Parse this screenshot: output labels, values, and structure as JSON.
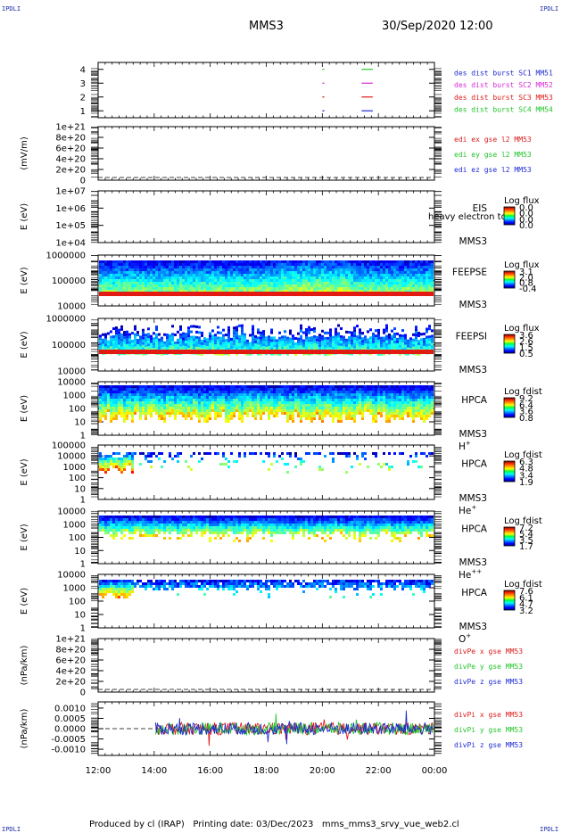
{
  "corner_label": "IPDLI",
  "header": {
    "spacecraft": "MMS3",
    "datetime": "30/Sep/2020 12:00"
  },
  "footer": {
    "produced_by": "Produced by cl (IRAP)",
    "printing_date": "Printing date: 03/Dec/2023",
    "filename": "mms_mms3_srvy_vue_web2.cl"
  },
  "colors": {
    "blue": "#1f2bd1",
    "magenta": "#d92bd6",
    "red": "#dd1b1b",
    "green": "#22c52a",
    "dark_blue": "#1a2ea8"
  },
  "chart_data": {
    "type": "multi-panel time series and spectrograms",
    "x": {
      "ticks": [
        "12:00",
        "14:00",
        "16:00",
        "18:00",
        "20:00",
        "22:00",
        "00:00"
      ],
      "range_hours": [
        0,
        12
      ]
    },
    "panels": [
      {
        "id": "burst",
        "type": "line",
        "ylim": [
          0.5,
          4.5
        ],
        "yticks": [
          "1",
          "2",
          "3",
          "4"
        ],
        "ylabel": "",
        "legend": [
          {
            "text": "des dist burst SC1 MM51",
            "color": "#1f2bd1"
          },
          {
            "text": "des dist burst SC2 MM52",
            "color": "#d92bd6"
          },
          {
            "text": "des dist burst SC3 MM53",
            "color": "#dd1b1b"
          },
          {
            "text": "des dist burst SC4 MM54",
            "color": "#22c52a"
          }
        ],
        "series": [
          {
            "level": 1,
            "intervals": [
              [
                8.0,
                8.2
              ],
              [
                9.4,
                9.8
              ]
            ]
          },
          {
            "level": 2,
            "intervals": [
              [
                8.0,
                8.2
              ],
              [
                9.4,
                9.8
              ]
            ]
          },
          {
            "level": 3,
            "intervals": [
              [
                8.0,
                8.2
              ],
              [
                9.4,
                9.8
              ]
            ]
          },
          {
            "level": 4,
            "intervals": [
              [
                8.0,
                8.2
              ],
              [
                9.4,
                9.8
              ]
            ]
          }
        ]
      },
      {
        "id": "edi",
        "type": "line",
        "ylabel": "(mV/m)",
        "yticks": [
          "0",
          "2e+20",
          "4e+20",
          "6e+20",
          "8e+20",
          "1e+21"
        ],
        "legend": [
          {
            "text": "edi ex gse l2 MM53",
            "color": "#dd1b1b"
          },
          {
            "text": "edi ey gse l2 MM53",
            "color": "#22c52a"
          },
          {
            "text": "edi ez gse l2 MM53",
            "color": "#1f2bd1"
          }
        ]
      },
      {
        "id": "eis",
        "type": "heatmap",
        "ylabel": "E (eV)",
        "yticks": [
          "1e+04",
          "1e+05",
          "1e+06",
          "1e+07"
        ],
        "instrument": "EIS",
        "instrument2": "MMS3",
        "subtitle": "heavy electron tof",
        "cb_title": "Log flux",
        "cb_ticks": [
          "0.0",
          "0.0",
          "0.0",
          "0.0"
        ]
      },
      {
        "id": "feepse",
        "type": "heatmap",
        "ylabel": "E (eV)",
        "yticks": [
          "10000",
          "100000",
          "1000000"
        ],
        "instrument": "FEEPSE",
        "instrument2": "MMS3",
        "cb_title": "Log flux",
        "cb_ticks": [
          "3.1",
          "2.0",
          "0.8",
          "-0.4"
        ]
      },
      {
        "id": "feepsi",
        "type": "heatmap",
        "ylabel": "E (eV)",
        "yticks": [
          "10000",
          "100000",
          "1000000"
        ],
        "instrument": "FEEPSI",
        "instrument2": "MMS3",
        "cb_title": "Log flux",
        "cb_ticks": [
          "3.6",
          "2.6",
          "1.5",
          "0.5"
        ]
      },
      {
        "id": "hpca_h",
        "type": "heatmap",
        "ylabel": "E (eV)",
        "yticks": [
          "1",
          "10",
          "100",
          "1000",
          "10000"
        ],
        "instrument": "HPCA",
        "instrument2": "MMS3",
        "species": "H",
        "species_sup": "+",
        "cb_title": "Log fdist",
        "cb_ticks": [
          "9.2",
          "6.4",
          "3.6",
          "0.8"
        ]
      },
      {
        "id": "hpca_he",
        "type": "heatmap",
        "ylabel": "E (eV)",
        "yticks": [
          "1",
          "10",
          "100",
          "1000",
          "10000",
          "100000"
        ],
        "instrument": "HPCA",
        "instrument2": "MMS3",
        "species": "He",
        "species_sup": "+",
        "cb_title": "Log fdist",
        "cb_ticks": [
          "6.3",
          "4.8",
          "3.4",
          "1.9"
        ]
      },
      {
        "id": "hpca_hepp",
        "type": "heatmap",
        "ylabel": "E (eV)",
        "yticks": [
          "1",
          "10",
          "100",
          "1000",
          "10000"
        ],
        "instrument": "HPCA",
        "instrument2": "MMS3",
        "species": "He",
        "species_sup": "++",
        "cb_title": "Log fdist",
        "cb_ticks": [
          "7.2",
          "5.4",
          "3.5",
          "1.7"
        ]
      },
      {
        "id": "hpca_o",
        "type": "heatmap",
        "ylabel": "E (eV)",
        "yticks": [
          "1",
          "10",
          "100",
          "1000",
          "10000"
        ],
        "instrument": "HPCA",
        "instrument2": "MMS3",
        "species": "O",
        "species_sup": "+",
        "cb_title": "Log fdist",
        "cb_ticks": [
          "7.6",
          "6.1",
          "4.7",
          "3.2"
        ]
      },
      {
        "id": "divpe",
        "type": "line",
        "ylabel": "(nPa/km)",
        "yticks": [
          "0",
          "2e+20",
          "4e+20",
          "6e+20",
          "8e+20",
          "1e+21"
        ],
        "legend": [
          {
            "text": "divPe x gse MM53",
            "color": "#dd1b1b"
          },
          {
            "text": "divPe y gse MM53",
            "color": "#22c52a"
          },
          {
            "text": "divPe z gse MM53",
            "color": "#1f2bd1"
          }
        ]
      },
      {
        "id": "divpi",
        "type": "line",
        "ylabel": "(nPa/km)",
        "ylim": [
          -0.0013,
          0.0013
        ],
        "yticks": [
          "-0.0010",
          "-0.0005",
          "0.0000",
          "0.0005",
          "0.0010"
        ],
        "data_start_hour": 2.05,
        "legend": [
          {
            "text": "divPi x gse MM53",
            "color": "#dd1b1b"
          },
          {
            "text": "divPi y gse MM53",
            "color": "#22c52a"
          },
          {
            "text": "divPi z gse MM53",
            "color": "#1f2bd1"
          }
        ]
      }
    ]
  }
}
